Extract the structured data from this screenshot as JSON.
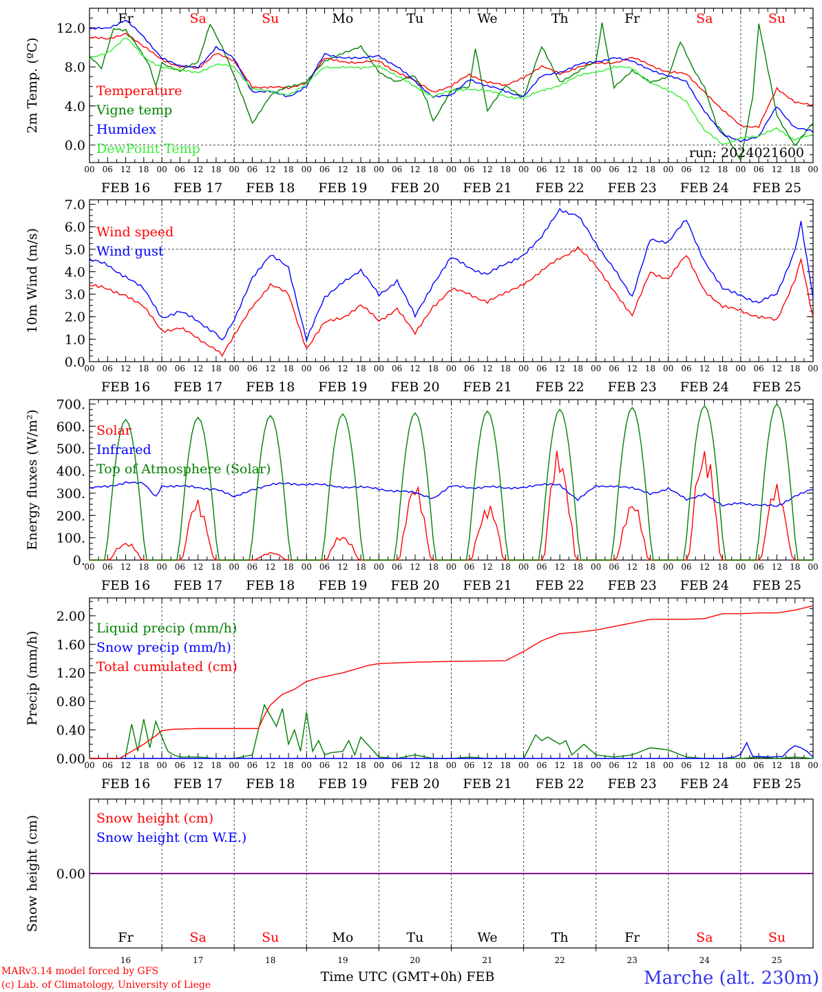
{
  "footer": {
    "model_line": "MARv3.14 model forced by GFS",
    "copyright_line": "(c) Lab. of Climatology, University of Liege",
    "time_label": "Time UTC (GMT+0h) FEB",
    "station": "Marche (alt. 230m)"
  },
  "run_label": "run: 2024021600",
  "days": {
    "weekday_labels": [
      "Fr",
      "Sa",
      "Su",
      "Mo",
      "Tu",
      "We",
      "Th",
      "Fr",
      "Sa",
      "Su"
    ],
    "weekend_flags": [
      false,
      true,
      true,
      false,
      false,
      false,
      false,
      false,
      true,
      true
    ],
    "date_labels": [
      "FEB 16",
      "FEB 17",
      "FEB 18",
      "FEB 19",
      "FEB 20",
      "FEB 21",
      "FEB 22",
      "FEB 23",
      "FEB 24",
      "FEB 25"
    ],
    "day_numbers": [
      "16",
      "17",
      "18",
      "19",
      "20",
      "21",
      "22",
      "23",
      "24",
      "25"
    ],
    "hour_ticks": [
      "00",
      "06",
      "12",
      "18"
    ],
    "final_tick": "00"
  },
  "colors": {
    "red": "#ff0000",
    "dark_green": "#008000",
    "blue": "#0000ff",
    "light_green": "#33ee33",
    "purple": "#800080",
    "station_blue": "#3333ee"
  },
  "chart_data": [
    {
      "type": "line",
      "ylabel": "2m Temp. (ºC)",
      "ylim": [
        -1.8,
        14.0
      ],
      "yticks": [
        "0.0",
        "4.0",
        "8.0",
        "12.0"
      ],
      "ytick_values": [
        0,
        4,
        8,
        12
      ],
      "dashed_y": 0,
      "x_unit": "hours since 2024-02-16 00 UTC",
      "legend_position": "left",
      "series": [
        {
          "name": "Temperature",
          "color": "#ff0000",
          "x": [
            0,
            6,
            12,
            18,
            24,
            30,
            36,
            42,
            48,
            54,
            60,
            66,
            72,
            78,
            84,
            90,
            96,
            102,
            108,
            114,
            120,
            126,
            132,
            138,
            144,
            150,
            156,
            162,
            168,
            174,
            180,
            186,
            192,
            198,
            204,
            210,
            216,
            222,
            228,
            234,
            240
          ],
          "y": [
            11.0,
            10.8,
            11.5,
            10.0,
            8.8,
            8.0,
            7.8,
            9.5,
            8.5,
            6.0,
            5.9,
            5.8,
            6.5,
            8.8,
            8.6,
            8.4,
            8.6,
            7.5,
            6.5,
            5.5,
            6.0,
            7.2,
            6.5,
            6.0,
            7.0,
            8.0,
            7.3,
            8.0,
            8.3,
            8.5,
            8.9,
            8.2,
            7.5,
            7.2,
            5.5,
            3.5,
            2.0,
            1.9,
            5.7,
            4.5,
            4.0
          ]
        },
        {
          "name": "Vigne temp",
          "color": "#008000",
          "x": [
            0,
            4,
            8,
            12,
            16,
            20,
            22,
            24,
            30,
            36,
            40,
            44,
            48,
            52,
            54,
            60,
            66,
            72,
            78,
            84,
            90,
            96,
            102,
            108,
            112,
            114,
            120,
            126,
            128,
            132,
            138,
            144,
            150,
            156,
            162,
            168,
            170,
            174,
            180,
            186,
            192,
            196,
            200,
            204,
            208,
            212,
            216,
            220,
            222,
            228,
            234,
            240
          ],
          "y": [
            9.0,
            7.8,
            12.0,
            11.8,
            10.0,
            8.0,
            6.0,
            8.5,
            7.5,
            8.5,
            12.5,
            10.0,
            7.0,
            4.0,
            2.3,
            5.0,
            6.0,
            6.5,
            8.5,
            9.5,
            10.0,
            7.5,
            6.5,
            7.0,
            4.5,
            2.5,
            5.5,
            6.0,
            10.0,
            3.5,
            6.0,
            5.0,
            10.0,
            6.5,
            7.5,
            8.5,
            12.5,
            6.0,
            7.5,
            6.5,
            7.0,
            10.5,
            8.0,
            6.0,
            2.0,
            0.5,
            -1.5,
            5.0,
            12.4,
            3.0,
            0.0,
            2.2
          ]
        },
        {
          "name": "Humidex",
          "color": "#0000ff",
          "x": [
            0,
            6,
            12,
            18,
            24,
            30,
            36,
            42,
            48,
            54,
            60,
            66,
            72,
            78,
            84,
            90,
            96,
            102,
            108,
            114,
            120,
            126,
            132,
            138,
            144,
            150,
            156,
            162,
            168,
            174,
            180,
            186,
            192,
            198,
            204,
            210,
            216,
            222,
            228,
            234,
            240
          ],
          "y": [
            11.8,
            12.0,
            12.8,
            11.0,
            9.0,
            8.0,
            8.0,
            10.0,
            8.8,
            5.5,
            5.4,
            5.0,
            6.0,
            9.3,
            9.0,
            8.8,
            9.2,
            8.0,
            6.5,
            5.0,
            5.0,
            6.8,
            6.0,
            5.5,
            5.0,
            7.0,
            7.5,
            8.2,
            8.5,
            9.0,
            8.5,
            7.8,
            7.0,
            6.5,
            3.5,
            1.0,
            0.5,
            0.8,
            4.0,
            1.8,
            1.3
          ]
        },
        {
          "name": "DewPoint Temp",
          "color": "#33ee33",
          "x": [
            0,
            6,
            12,
            18,
            24,
            30,
            36,
            42,
            48,
            54,
            60,
            66,
            72,
            78,
            84,
            90,
            96,
            102,
            108,
            114,
            120,
            126,
            132,
            138,
            144,
            150,
            156,
            162,
            168,
            174,
            180,
            186,
            192,
            198,
            204,
            210,
            216,
            222,
            228,
            234,
            240
          ],
          "y": [
            8.8,
            9.5,
            11.0,
            9.0,
            8.0,
            7.6,
            7.5,
            8.2,
            8.0,
            5.8,
            5.4,
            5.2,
            6.2,
            8.0,
            8.0,
            7.8,
            8.2,
            7.0,
            6.0,
            5.0,
            5.5,
            5.8,
            5.5,
            5.0,
            4.8,
            5.5,
            6.2,
            7.0,
            7.5,
            8.0,
            7.8,
            6.5,
            5.5,
            4.5,
            1.5,
            0.0,
            0.8,
            0.8,
            1.8,
            0.5,
            1.0
          ]
        }
      ]
    },
    {
      "type": "line",
      "ylabel": "10m Wind (m/s)",
      "ylim": [
        0.0,
        7.2
      ],
      "yticks": [
        "0.0",
        "1.0",
        "2.0",
        "3.0",
        "4.0",
        "5.0",
        "6.0",
        "7.0"
      ],
      "ytick_values": [
        0,
        1,
        2,
        3,
        4,
        5,
        6,
        7
      ],
      "dashed_y": 5,
      "x_unit": "hours since 2024-02-16 00 UTC",
      "legend_position": "left",
      "series": [
        {
          "name": "Wind speed",
          "color": "#ff0000",
          "x": [
            0,
            6,
            12,
            18,
            24,
            30,
            36,
            42,
            44,
            48,
            54,
            60,
            66,
            72,
            78,
            84,
            90,
            96,
            102,
            108,
            114,
            120,
            126,
            132,
            138,
            144,
            150,
            156,
            162,
            168,
            174,
            180,
            186,
            192,
            198,
            204,
            210,
            216,
            222,
            228,
            234,
            236,
            240
          ],
          "y": [
            3.4,
            3.2,
            3.0,
            2.4,
            1.4,
            1.5,
            1.0,
            0.6,
            0.3,
            1.1,
            2.5,
            3.4,
            3.0,
            0.6,
            1.7,
            2.0,
            2.5,
            1.8,
            2.4,
            1.2,
            2.5,
            3.2,
            3.0,
            2.7,
            3.0,
            3.5,
            4.0,
            4.6,
            5.1,
            4.2,
            3.2,
            2.0,
            4.0,
            3.7,
            4.7,
            3.2,
            2.4,
            2.3,
            2.0,
            1.8,
            3.7,
            4.6,
            1.9
          ]
        },
        {
          "name": "Wind gust",
          "color": "#0000ff",
          "x": [
            0,
            6,
            12,
            18,
            24,
            30,
            36,
            42,
            44,
            48,
            54,
            60,
            66,
            72,
            78,
            84,
            90,
            96,
            102,
            108,
            114,
            120,
            126,
            132,
            138,
            144,
            150,
            156,
            162,
            168,
            174,
            180,
            186,
            192,
            198,
            204,
            210,
            216,
            222,
            228,
            234,
            236,
            240
          ],
          "y": [
            4.5,
            4.3,
            3.8,
            3.2,
            2.0,
            2.2,
            1.8,
            1.3,
            0.9,
            1.8,
            3.8,
            4.7,
            4.2,
            1.0,
            2.8,
            3.6,
            4.0,
            3.0,
            3.6,
            2.0,
            3.5,
            4.6,
            4.2,
            3.9,
            4.3,
            4.8,
            5.5,
            6.8,
            6.5,
            5.2,
            4.2,
            2.8,
            5.5,
            5.3,
            6.3,
            4.5,
            3.2,
            3.0,
            2.6,
            3.0,
            5.0,
            6.2,
            2.8
          ]
        }
      ]
    },
    {
      "type": "line",
      "ylabel": "Energy fluxes (W/m²)",
      "ylim": [
        0,
        720
      ],
      "yticks": [
        "0.",
        "100.",
        "200.",
        "300.",
        "400.",
        "500.",
        "600.",
        "700."
      ],
      "ytick_values": [
        0,
        100,
        200,
        300,
        400,
        500,
        600,
        700
      ],
      "x_unit": "hours since 2024-02-16 00 UTC",
      "legend_position": "left",
      "series": [
        {
          "name": "Solar",
          "color": "#ff0000",
          "solar_peaks": [
            80,
            230,
            30,
            110,
            280,
            235,
            440,
            220,
            505,
            280
          ]
        },
        {
          "name": "Infrared",
          "color": "#0000ff",
          "x": [
            0,
            6,
            12,
            18,
            22,
            24,
            30,
            36,
            42,
            48,
            54,
            60,
            66,
            72,
            78,
            84,
            90,
            96,
            102,
            108,
            114,
            120,
            126,
            132,
            138,
            144,
            150,
            156,
            162,
            168,
            174,
            180,
            186,
            192,
            198,
            204,
            210,
            216,
            222,
            228,
            234,
            240
          ],
          "y": [
            320,
            330,
            350,
            340,
            285,
            335,
            330,
            325,
            320,
            280,
            320,
            335,
            345,
            340,
            335,
            330,
            325,
            320,
            310,
            300,
            280,
            330,
            325,
            330,
            320,
            330,
            335,
            340,
            270,
            330,
            335,
            320,
            300,
            320,
            270,
            300,
            240,
            260,
            245,
            240,
            290,
            315
          ]
        },
        {
          "name": "Top of Atmosphere (Solar)",
          "color": "#008000",
          "toa_peaks": [
            630,
            640,
            648,
            655,
            660,
            668,
            676,
            684,
            692,
            700
          ]
        }
      ]
    },
    {
      "type": "line",
      "ylabel": "Precip (mm/h)",
      "ylim": [
        0,
        2.25
      ],
      "yticks": [
        "0.00",
        "0.40",
        "0.80",
        "1.20",
        "1.60",
        "2.00"
      ],
      "ytick_values": [
        0,
        0.4,
        0.8,
        1.2,
        1.6,
        2.0
      ],
      "x_unit": "hours since 2024-02-16 00 UTC",
      "legend_position": "left",
      "series": [
        {
          "name": "Liquid precip (mm/h)",
          "color": "#008000",
          "x": [
            0,
            10,
            12,
            14,
            16,
            18,
            20,
            22,
            24,
            26,
            28,
            30,
            36,
            42,
            48,
            54,
            56,
            58,
            60,
            62,
            64,
            66,
            68,
            70,
            72,
            74,
            76,
            78,
            80,
            84,
            86,
            88,
            90,
            96,
            102,
            108,
            114,
            120,
            126,
            132,
            138,
            144,
            148,
            150,
            152,
            156,
            158,
            160,
            164,
            168,
            174,
            180,
            186,
            192,
            198,
            204,
            210,
            216,
            222,
            228,
            234,
            240
          ],
          "y": [
            0,
            0,
            0.05,
            0.48,
            0.1,
            0.55,
            0.15,
            0.52,
            0.3,
            0.1,
            0.05,
            0.02,
            0.02,
            0,
            0,
            0.05,
            0.4,
            0.75,
            0.6,
            0.45,
            0.7,
            0.2,
            0.4,
            0.1,
            0.65,
            0.1,
            0.25,
            0.05,
            0.08,
            0.1,
            0.25,
            0.05,
            0.3,
            0.02,
            0,
            0.05,
            0,
            0,
            0.02,
            0,
            0,
            0,
            0.33,
            0.25,
            0.3,
            0.2,
            0.25,
            0.05,
            0.2,
            0.05,
            0.02,
            0.05,
            0.15,
            0.12,
            0.02,
            0,
            0,
            0,
            0.02,
            0,
            0.02,
            0
          ]
        },
        {
          "name": "Snow precip (mm/h)",
          "color": "#0000ff",
          "x": [
            0,
            210,
            214,
            216,
            218,
            220,
            226,
            230,
            232,
            234,
            236,
            238,
            240
          ],
          "y": [
            0,
            0,
            0.02,
            0.06,
            0.22,
            0.03,
            0.02,
            0.03,
            0.12,
            0.18,
            0.15,
            0.1,
            0.02
          ]
        },
        {
          "name": "Total cumulated (cm)",
          "color": "#ff0000",
          "x": [
            0,
            10,
            14,
            18,
            22,
            24,
            28,
            36,
            48,
            56,
            58,
            60,
            64,
            68,
            72,
            76,
            84,
            92,
            96,
            108,
            120,
            138,
            144,
            150,
            156,
            162,
            168,
            174,
            180,
            186,
            192,
            198,
            204,
            210,
            216,
            222,
            228,
            234,
            240
          ],
          "y": [
            0,
            0,
            0.1,
            0.2,
            0.32,
            0.39,
            0.41,
            0.42,
            0.42,
            0.42,
            0.6,
            0.75,
            0.9,
            0.97,
            1.08,
            1.13,
            1.2,
            1.3,
            1.33,
            1.35,
            1.36,
            1.37,
            1.5,
            1.65,
            1.75,
            1.77,
            1.8,
            1.85,
            1.9,
            1.95,
            1.95,
            1.95,
            1.96,
            2.03,
            2.03,
            2.04,
            2.04,
            2.08,
            2.14
          ]
        }
      ]
    },
    {
      "type": "line",
      "ylabel": "Snow height (cm)",
      "ylim": [
        -0.1,
        0.1
      ],
      "yticks": [
        "0.00"
      ],
      "ytick_values": [
        0
      ],
      "x_unit": "hours since 2024-02-16 00 UTC",
      "legend_position": "left",
      "series": [
        {
          "name": "Snow height (cm)",
          "color": "#ff0000",
          "x": [
            0,
            240
          ],
          "y": [
            0,
            0
          ]
        },
        {
          "name": "Snow height (cm W.E.)",
          "color": "#0000ff",
          "x": [
            0,
            240
          ],
          "y": [
            0,
            0
          ]
        }
      ]
    }
  ]
}
